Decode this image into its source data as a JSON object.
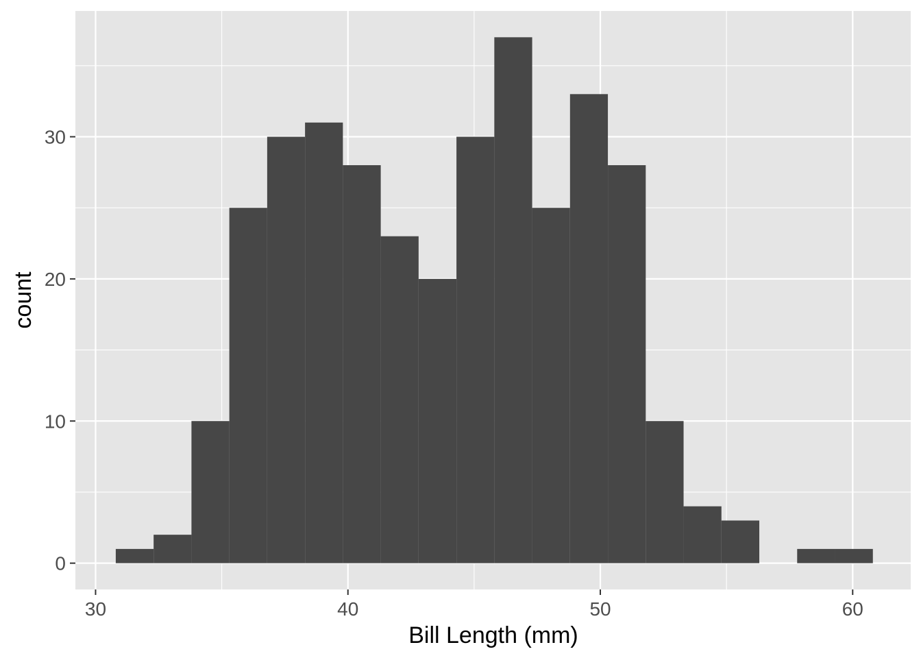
{
  "chart_data": {
    "type": "bar",
    "subtype": "histogram",
    "xlabel": "Bill Length (mm)",
    "ylabel": "count",
    "x_ticks": [
      30,
      40,
      50,
      60
    ],
    "y_ticks": [
      0,
      10,
      20,
      30
    ],
    "xlim": [
      29.2,
      62.3
    ],
    "ylim": [
      -1.85,
      38.85
    ],
    "bins": [
      {
        "x0": 30.8,
        "x1": 32.3,
        "count": 1
      },
      {
        "x0": 32.3,
        "x1": 33.8,
        "count": 2
      },
      {
        "x0": 33.8,
        "x1": 35.3,
        "count": 10
      },
      {
        "x0": 35.3,
        "x1": 36.8,
        "count": 25
      },
      {
        "x0": 36.8,
        "x1": 38.3,
        "count": 30
      },
      {
        "x0": 38.3,
        "x1": 39.8,
        "count": 31
      },
      {
        "x0": 39.8,
        "x1": 41.3,
        "count": 28
      },
      {
        "x0": 41.3,
        "x1": 42.8,
        "count": 23
      },
      {
        "x0": 42.8,
        "x1": 44.3,
        "count": 20
      },
      {
        "x0": 44.3,
        "x1": 45.8,
        "count": 30
      },
      {
        "x0": 45.8,
        "x1": 47.3,
        "count": 37
      },
      {
        "x0": 47.3,
        "x1": 48.8,
        "count": 25
      },
      {
        "x0": 48.8,
        "x1": 50.3,
        "count": 33
      },
      {
        "x0": 50.3,
        "x1": 51.8,
        "count": 28
      },
      {
        "x0": 51.8,
        "x1": 53.3,
        "count": 10
      },
      {
        "x0": 53.3,
        "x1": 54.8,
        "count": 4
      },
      {
        "x0": 54.8,
        "x1": 56.3,
        "count": 3
      },
      {
        "x0": 56.3,
        "x1": 57.8,
        "count": 0
      },
      {
        "x0": 57.8,
        "x1": 59.3,
        "count": 1
      },
      {
        "x0": 59.3,
        "x1": 60.8,
        "count": 1
      }
    ],
    "grid": true,
    "colors": {
      "panel_background": "#e5e5e5",
      "grid_major": "#ffffff",
      "bar_fill": "#474747"
    }
  }
}
